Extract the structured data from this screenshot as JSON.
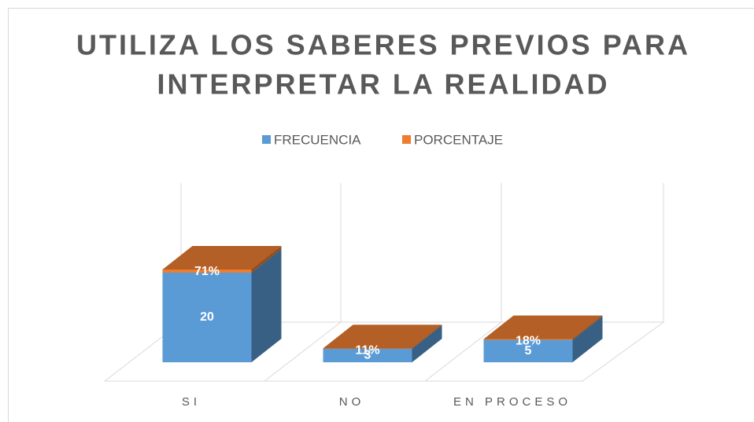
{
  "chart_data": {
    "type": "bar3d-stacked",
    "title": [
      "UTILIZA LOS SABERES PREVIOS PARA",
      "INTERPRETAR LA REALIDAD"
    ],
    "categories": [
      "SI",
      "NO",
      "EN PROCESO"
    ],
    "series": [
      {
        "name": "FRECUENCIA",
        "color": "#5b9bd5",
        "values": [
          20,
          3,
          5
        ]
      },
      {
        "name": "PORCENTAJE",
        "color": "#ed7d31",
        "values": [
          0.71,
          0.11,
          0.18
        ],
        "value_labels": [
          "71%",
          "11%",
          "18%"
        ]
      }
    ],
    "ylim": [
      0,
      30
    ]
  }
}
